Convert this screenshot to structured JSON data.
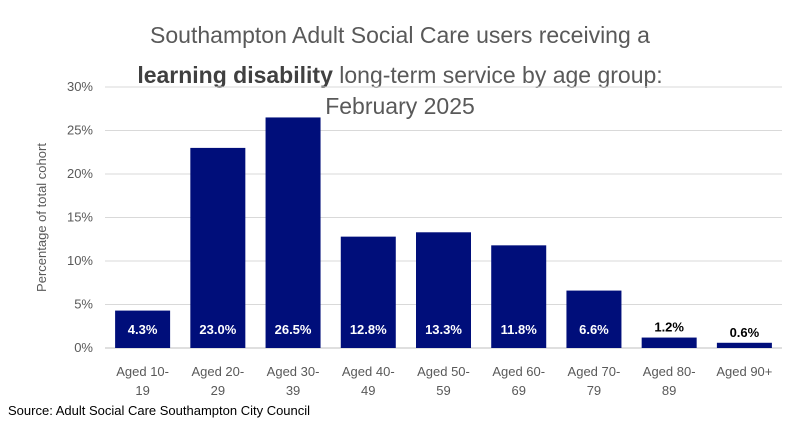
{
  "title": {
    "line1": "Southampton Adult Social Care users receiving a",
    "line2_bold": "learning disability",
    "line2_rest": " long-term service by age group:",
    "line3": "February 2025"
  },
  "source": "Source: Adult Social Care Southampton City Council",
  "colors": {
    "bar": "#000e7a",
    "label_inside": "#ffffff",
    "label_outside": "#000000",
    "grid": "#d9d9d9"
  },
  "chart_data": {
    "type": "bar",
    "ylabel": "Percentage of total cohort",
    "ylim": [
      0,
      30
    ],
    "yticks": [
      "0%",
      "5%",
      "10%",
      "15%",
      "20%",
      "25%",
      "30%"
    ],
    "grid": true,
    "categories": [
      [
        "Aged 10-",
        "19"
      ],
      [
        "Aged 20-",
        "29"
      ],
      [
        "Aged 30-",
        "39"
      ],
      [
        "Aged 40-",
        "49"
      ],
      [
        "Aged 50-",
        "59"
      ],
      [
        "Aged 60-",
        "69"
      ],
      [
        "Aged 70-",
        "79"
      ],
      [
        "Aged 80-",
        "89"
      ],
      [
        "Aged 90+",
        ""
      ]
    ],
    "values": [
      4.3,
      23.0,
      26.5,
      12.8,
      13.3,
      11.8,
      6.6,
      1.2,
      0.6
    ],
    "data_labels": [
      "4.3%",
      "23.0%",
      "26.5%",
      "12.8%",
      "13.3%",
      "11.8%",
      "6.6%",
      "1.2%",
      "0.6%"
    ]
  }
}
